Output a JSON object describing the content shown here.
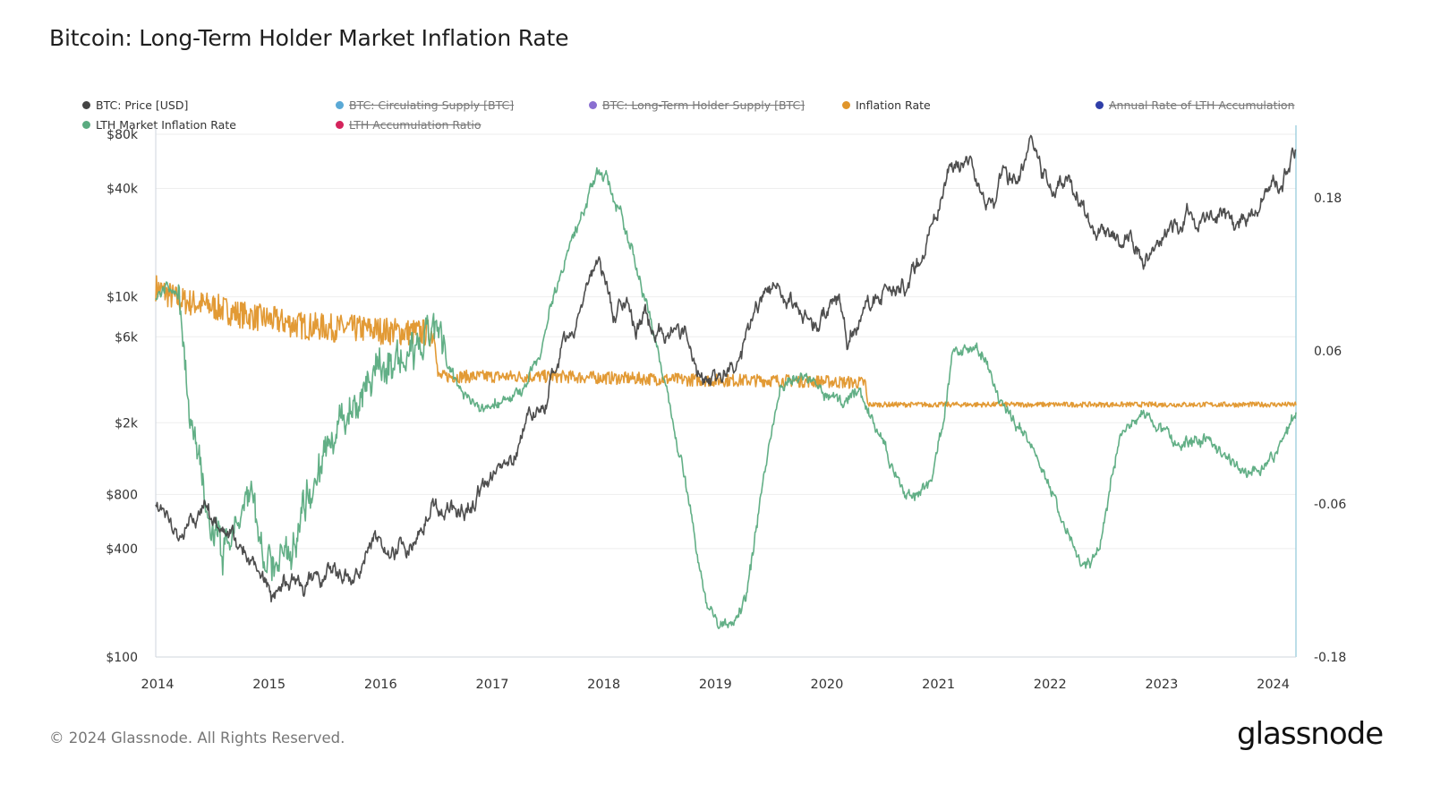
{
  "title": "Bitcoin: Long-Term Holder Market Inflation Rate",
  "footer": "© 2024 Glassnode. All Rights Reserved.",
  "brand": "glassnode",
  "legend": [
    {
      "label": "BTC: Price [USD]",
      "color": "#444444",
      "enabled": true
    },
    {
      "label": "BTC: Circulating Supply [BTC]",
      "color": "#5aa9d6",
      "enabled": false
    },
    {
      "label": "BTC: Long-Term Holder Supply [BTC]",
      "color": "#8a6fd1",
      "enabled": false
    },
    {
      "label": "Inflation Rate",
      "color": "#e0952a",
      "enabled": true
    },
    {
      "label": "Annual Rate of LTH Accumulation",
      "color": "#2f3ea8",
      "enabled": false
    },
    {
      "label": "LTH Market Inflation Rate",
      "color": "#5aab80",
      "enabled": true
    },
    {
      "label": "LTH Accumulation Ratio",
      "color": "#d4245c",
      "enabled": false
    }
  ],
  "chart_data": {
    "type": "line",
    "title": "Bitcoin: Long-Term Holder Market Inflation Rate",
    "x_range": [
      "2014-01-01",
      "2024-03-15"
    ],
    "x_ticks": [
      "2014",
      "2015",
      "2016",
      "2017",
      "2018",
      "2019",
      "2020",
      "2021",
      "2022",
      "2023",
      "2024"
    ],
    "y_left": {
      "scale": "log",
      "range": [
        100,
        80000
      ],
      "ticks": [
        {
          "value": 80000,
          "label": "$80k"
        },
        {
          "value": 40000,
          "label": "$40k"
        },
        {
          "value": 10000,
          "label": "$10k"
        },
        {
          "value": 6000,
          "label": "$6k"
        },
        {
          "value": 2000,
          "label": "$2k"
        },
        {
          "value": 800,
          "label": "$800"
        },
        {
          "value": 400,
          "label": "$400"
        },
        {
          "value": 100,
          "label": "$100"
        }
      ]
    },
    "y_right": {
      "scale": "linear",
      "range": [
        -0.18,
        0.23
      ],
      "ticks": [
        {
          "value": 0.18,
          "label": "0.18"
        },
        {
          "value": 0.06,
          "label": "0.06"
        },
        {
          "value": -0.06,
          "label": "-0.06"
        },
        {
          "value": -0.18,
          "label": "-0.18"
        }
      ]
    },
    "series": [
      {
        "name": "BTC: Price [USD]",
        "axis": "left",
        "color": "#444444",
        "noise": 0.035,
        "points": [
          [
            2014.0,
            750
          ],
          [
            2014.08,
            620
          ],
          [
            2014.25,
            460
          ],
          [
            2014.35,
            580
          ],
          [
            2014.45,
            640
          ],
          [
            2014.6,
            560
          ],
          [
            2014.75,
            400
          ],
          [
            2014.85,
            360
          ],
          [
            2014.95,
            320
          ],
          [
            2015.04,
            200
          ],
          [
            2015.1,
            250
          ],
          [
            2015.2,
            250
          ],
          [
            2015.35,
            235
          ],
          [
            2015.5,
            270
          ],
          [
            2015.6,
            280
          ],
          [
            2015.75,
            240
          ],
          [
            2015.85,
            320
          ],
          [
            2015.95,
            430
          ],
          [
            2016.1,
            410
          ],
          [
            2016.3,
            440
          ],
          [
            2016.45,
            700
          ],
          [
            2016.55,
            660
          ],
          [
            2016.7,
            610
          ],
          [
            2016.85,
            730
          ],
          [
            2017.0,
            950
          ],
          [
            2017.1,
            1100
          ],
          [
            2017.2,
            1200
          ],
          [
            2017.35,
            2400
          ],
          [
            2017.5,
            2600
          ],
          [
            2017.6,
            4200
          ],
          [
            2017.75,
            5800
          ],
          [
            2017.85,
            10000
          ],
          [
            2017.96,
            18000
          ],
          [
            2018.02,
            14000
          ],
          [
            2018.1,
            8000
          ],
          [
            2018.2,
            9500
          ],
          [
            2018.3,
            7000
          ],
          [
            2018.4,
            7500
          ],
          [
            2018.5,
            6500
          ],
          [
            2018.6,
            6600
          ],
          [
            2018.7,
            6500
          ],
          [
            2018.85,
            4000
          ],
          [
            2018.96,
            3700
          ],
          [
            2019.1,
            3600
          ],
          [
            2019.25,
            4500
          ],
          [
            2019.4,
            8500
          ],
          [
            2019.5,
            11500
          ],
          [
            2019.6,
            10000
          ],
          [
            2019.75,
            8500
          ],
          [
            2019.9,
            7200
          ],
          [
            2020.0,
            8600
          ],
          [
            2020.15,
            9000
          ],
          [
            2020.2,
            5200
          ],
          [
            2020.35,
            8800
          ],
          [
            2020.5,
            9500
          ],
          [
            2020.6,
            11500
          ],
          [
            2020.75,
            11000
          ],
          [
            2020.9,
            19000
          ],
          [
            2021.0,
            30000
          ],
          [
            2021.1,
            48000
          ],
          [
            2021.2,
            57000
          ],
          [
            2021.3,
            58000
          ],
          [
            2021.4,
            38000
          ],
          [
            2021.5,
            33000
          ],
          [
            2021.6,
            45000
          ],
          [
            2021.75,
            50000
          ],
          [
            2021.85,
            64000
          ],
          [
            2021.95,
            48000
          ],
          [
            2022.05,
            38000
          ],
          [
            2022.15,
            44000
          ],
          [
            2022.25,
            40000
          ],
          [
            2022.4,
            21000
          ],
          [
            2022.5,
            22000
          ],
          [
            2022.6,
            20000
          ],
          [
            2022.75,
            19500
          ],
          [
            2022.85,
            16500
          ],
          [
            2023.0,
            17000
          ],
          [
            2023.1,
            23000
          ],
          [
            2023.25,
            28000
          ],
          [
            2023.4,
            26500
          ],
          [
            2023.55,
            30000
          ],
          [
            2023.65,
            26000
          ],
          [
            2023.8,
            28000
          ],
          [
            2023.9,
            37000
          ],
          [
            2024.0,
            42000
          ],
          [
            2024.1,
            45000
          ],
          [
            2024.18,
            63000
          ],
          [
            2024.22,
            70000
          ]
        ]
      },
      {
        "name": "Inflation Rate",
        "axis": "right",
        "color": "#e0952a",
        "noise": 0.0,
        "points": [
          [
            2014.0,
            0.11
          ],
          [
            2014.2,
            0.1
          ],
          [
            2014.5,
            0.095
          ],
          [
            2014.8,
            0.088
          ],
          [
            2015.0,
            0.085
          ],
          [
            2015.3,
            0.08
          ],
          [
            2015.6,
            0.078
          ],
          [
            2015.9,
            0.077
          ],
          [
            2016.2,
            0.075
          ],
          [
            2016.5,
            0.074
          ],
          [
            2016.53,
            0.04
          ],
          [
            2016.8,
            0.04
          ],
          [
            2017.2,
            0.04
          ],
          [
            2017.6,
            0.04
          ],
          [
            2018.0,
            0.039
          ],
          [
            2018.5,
            0.038
          ],
          [
            2019.0,
            0.037
          ],
          [
            2019.5,
            0.037
          ],
          [
            2020.0,
            0.036
          ],
          [
            2020.36,
            0.035
          ],
          [
            2020.38,
            0.018
          ],
          [
            2020.8,
            0.018
          ],
          [
            2021.2,
            0.018
          ],
          [
            2021.6,
            0.018
          ],
          [
            2022.0,
            0.018
          ],
          [
            2022.5,
            0.018
          ],
          [
            2023.0,
            0.018
          ],
          [
            2023.5,
            0.018
          ],
          [
            2024.0,
            0.018
          ],
          [
            2024.22,
            0.018
          ]
        ]
      },
      {
        "name": "LTH Market Inflation Rate",
        "axis": "right",
        "color": "#5aab80",
        "noise": 0.0,
        "points": [
          [
            2014.0,
            0.1
          ],
          [
            2014.1,
            0.11
          ],
          [
            2014.2,
            0.1
          ],
          [
            2014.3,
            0.02
          ],
          [
            2014.45,
            -0.07
          ],
          [
            2014.6,
            -0.095
          ],
          [
            2014.75,
            -0.075
          ],
          [
            2014.85,
            -0.05
          ],
          [
            2014.95,
            -0.1
          ],
          [
            2015.1,
            -0.11
          ],
          [
            2015.25,
            -0.08
          ],
          [
            2015.4,
            -0.04
          ],
          [
            2015.55,
            -0.02
          ],
          [
            2015.7,
            0.01
          ],
          [
            2015.85,
            0.03
          ],
          [
            2015.95,
            0.045
          ],
          [
            2016.1,
            0.05
          ],
          [
            2016.25,
            0.05
          ],
          [
            2016.4,
            0.06
          ],
          [
            2016.5,
            0.08
          ],
          [
            2016.6,
            0.05
          ],
          [
            2016.75,
            0.03
          ],
          [
            2016.9,
            0.015
          ],
          [
            2017.1,
            0.02
          ],
          [
            2017.3,
            0.03
          ],
          [
            2017.45,
            0.06
          ],
          [
            2017.55,
            0.1
          ],
          [
            2017.7,
            0.14
          ],
          [
            2017.85,
            0.175
          ],
          [
            2017.95,
            0.2
          ],
          [
            2018.05,
            0.195
          ],
          [
            2018.15,
            0.17
          ],
          [
            2018.3,
            0.13
          ],
          [
            2018.45,
            0.08
          ],
          [
            2018.6,
            0.02
          ],
          [
            2018.75,
            -0.04
          ],
          [
            2018.85,
            -0.1
          ],
          [
            2018.95,
            -0.14
          ],
          [
            2019.05,
            -0.155
          ],
          [
            2019.15,
            -0.155
          ],
          [
            2019.3,
            -0.13
          ],
          [
            2019.4,
            -0.07
          ],
          [
            2019.5,
            -0.01
          ],
          [
            2019.6,
            0.03
          ],
          [
            2019.75,
            0.04
          ],
          [
            2019.9,
            0.035
          ],
          [
            2020.0,
            0.025
          ],
          [
            2020.15,
            0.02
          ],
          [
            2020.3,
            0.03
          ],
          [
            2020.4,
            0.01
          ],
          [
            2020.55,
            -0.02
          ],
          [
            2020.7,
            -0.05
          ],
          [
            2020.8,
            -0.055
          ],
          [
            2020.95,
            -0.04
          ],
          [
            2021.05,
            0.0
          ],
          [
            2021.15,
            0.06
          ],
          [
            2021.25,
            0.065
          ],
          [
            2021.35,
            0.06
          ],
          [
            2021.45,
            0.05
          ],
          [
            2021.55,
            0.02
          ],
          [
            2021.65,
            0.01
          ],
          [
            2021.75,
            0.0
          ],
          [
            2021.85,
            -0.015
          ],
          [
            2021.95,
            -0.03
          ],
          [
            2022.05,
            -0.055
          ],
          [
            2022.15,
            -0.08
          ],
          [
            2022.3,
            -0.11
          ],
          [
            2022.45,
            -0.1
          ],
          [
            2022.55,
            -0.05
          ],
          [
            2022.65,
            -0.005
          ],
          [
            2022.75,
            0.005
          ],
          [
            2022.85,
            0.01
          ],
          [
            2023.0,
            0.0
          ],
          [
            2023.15,
            -0.015
          ],
          [
            2023.3,
            -0.01
          ],
          [
            2023.45,
            -0.01
          ],
          [
            2023.6,
            -0.025
          ],
          [
            2023.8,
            -0.035
          ],
          [
            2023.95,
            -0.03
          ],
          [
            2024.05,
            -0.02
          ],
          [
            2024.15,
            0.0
          ],
          [
            2024.22,
            0.015
          ]
        ]
      }
    ]
  }
}
